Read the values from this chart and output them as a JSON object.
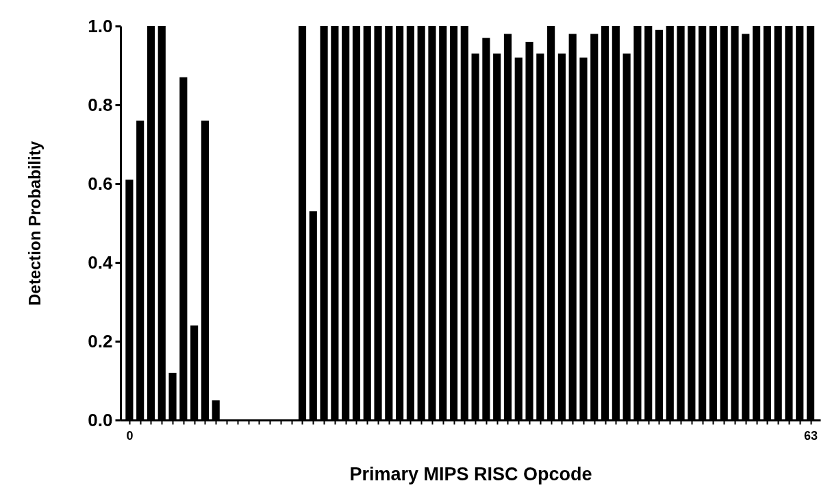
{
  "chart_data": {
    "type": "bar",
    "xlabel": "Primary MIPS RISC Opcode",
    "ylabel": "Detection Probability",
    "x": [
      0,
      1,
      2,
      3,
      4,
      5,
      6,
      7,
      8,
      9,
      10,
      11,
      12,
      13,
      14,
      15,
      16,
      17,
      18,
      19,
      20,
      21,
      22,
      23,
      24,
      25,
      26,
      27,
      28,
      29,
      30,
      31,
      32,
      33,
      34,
      35,
      36,
      37,
      38,
      39,
      40,
      41,
      42,
      43,
      44,
      45,
      46,
      47,
      48,
      49,
      50,
      51,
      52,
      53,
      54,
      55,
      56,
      57,
      58,
      59,
      60,
      61,
      62,
      63
    ],
    "values": [
      0.61,
      0.76,
      1.0,
      1.0,
      0.12,
      0.87,
      0.24,
      0.76,
      0.05,
      null,
      null,
      null,
      null,
      null,
      null,
      null,
      1.0,
      0.53,
      1.0,
      1.0,
      1.0,
      1.0,
      1.0,
      1.0,
      1.0,
      1.0,
      1.0,
      1.0,
      1.0,
      1.0,
      1.0,
      1.0,
      0.93,
      0.97,
      0.93,
      0.98,
      0.92,
      0.96,
      0.93,
      1.0,
      0.93,
      0.98,
      0.92,
      0.98,
      1.0,
      1.0,
      0.93,
      1.0,
      1.0,
      0.99,
      1.0,
      1.0,
      1.0,
      1.0,
      1.0,
      1.0,
      1.0,
      0.98,
      1.0,
      1.0,
      1.0,
      1.0,
      1.0,
      1.0
    ],
    "color": "#000000",
    "xlim": [
      -0.5,
      63.6
    ],
    "xticks": [
      0,
      {
        "value": 1,
        "label": null
      },
      {
        "value": 2,
        "label": null
      },
      {
        "value": 3,
        "label": null
      },
      {
        "value": 4,
        "label": null
      },
      {
        "value": 5,
        "label": null
      },
      {
        "value": 6,
        "label": null
      },
      {
        "value": 7,
        "label": null
      },
      {
        "value": 8,
        "label": null
      },
      {
        "value": 9,
        "label": null
      },
      {
        "value": 10,
        "label": null
      },
      {
        "value": 11,
        "label": null
      },
      {
        "value": 12,
        "label": null
      },
      {
        "value": 13,
        "label": null
      },
      {
        "value": 14,
        "label": null
      },
      {
        "value": 15,
        "label": null
      },
      {
        "value": 16,
        "label": null
      },
      {
        "value": 17,
        "label": null
      },
      {
        "value": 18,
        "label": null
      },
      {
        "value": 19,
        "label": null
      },
      {
        "value": 20,
        "label": null
      },
      {
        "value": 21,
        "label": null
      },
      {
        "value": 22,
        "label": null
      },
      {
        "value": 23,
        "label": null
      },
      {
        "value": 24,
        "label": null
      },
      {
        "value": 25,
        "label": null
      },
      {
        "value": 26,
        "label": null
      },
      {
        "value": 27,
        "label": null
      },
      {
        "value": 28,
        "label": null
      },
      {
        "value": 29,
        "label": null
      },
      {
        "value": 30,
        "label": null
      },
      {
        "value": 31,
        "label": null
      },
      {
        "value": 32,
        "label": null
      },
      {
        "value": 33,
        "label": null
      },
      {
        "value": 34,
        "label": null
      },
      {
        "value": 35,
        "label": null
      },
      {
        "value": 36,
        "label": null
      },
      {
        "value": 37,
        "label": null
      },
      {
        "value": 38,
        "label": null
      },
      {
        "value": 39,
        "label": null
      },
      {
        "value": 40,
        "label": null
      },
      {
        "value": 41,
        "label": null
      },
      {
        "value": 42,
        "label": null
      },
      {
        "value": 43,
        "label": null
      },
      {
        "value": 44,
        "label": null
      },
      {
        "value": 45,
        "label": null
      },
      {
        "value": 46,
        "label": null
      },
      {
        "value": 47,
        "label": null
      },
      {
        "value": 48,
        "label": null
      },
      {
        "value": 49,
        "label": null
      },
      {
        "value": 50,
        "label": null
      },
      {
        "value": 51,
        "label": null
      },
      {
        "value": 52,
        "label": null
      },
      {
        "value": 53,
        "label": null
      },
      {
        "value": 54,
        "label": null
      },
      {
        "value": 55,
        "label": null
      },
      {
        "value": 56,
        "label": null
      },
      {
        "value": 57,
        "label": null
      },
      {
        "value": 58,
        "label": null
      },
      {
        "value": 59,
        "label": null
      },
      {
        "value": 60,
        "label": null
      },
      {
        "value": 61,
        "label": null
      },
      {
        "value": 62,
        "label": null
      },
      63
    ],
    "ylim": [
      0,
      1.0
    ],
    "yticks": [
      {
        "value": 0,
        "label": "0.0"
      },
      0.2,
      0.4,
      0.6,
      0.8,
      {
        "value": 1,
        "label": "1.0"
      }
    ]
  }
}
